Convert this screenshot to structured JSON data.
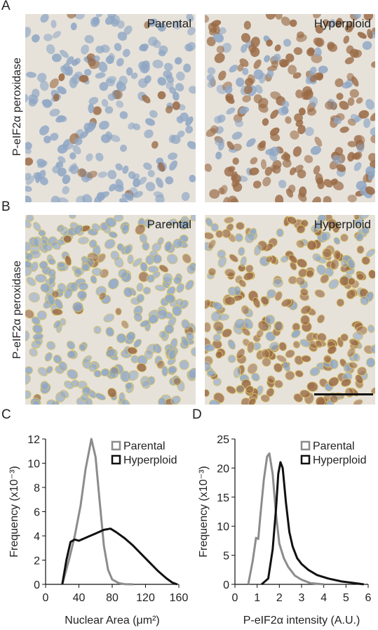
{
  "panels": {
    "A": {
      "letter": "A",
      "ylabel": "P-eIF2α peroxidase",
      "left_label": "Parental",
      "right_label": "Hyperploid"
    },
    "B": {
      "letter": "B",
      "ylabel": "P-eIF2α peroxidase",
      "left_label": "Parental",
      "right_label": "Hyperploid"
    },
    "C": {
      "letter": "C"
    },
    "D": {
      "letter": "D"
    }
  },
  "colors": {
    "parental": "#8c8c8c",
    "hyperploid": "#111111",
    "bg_tissue": "#e6e2da",
    "nucleus_blue": "#8fa6c4",
    "nucleus_brown": "#9a6a45",
    "outline_yellow": "#d8c46a"
  },
  "chart_data": [
    {
      "type": "line",
      "panel": "C",
      "xlabel": "Nuclear Area (μm²)",
      "ylabel": "Frequency (x10⁻³)",
      "xlim": [
        0,
        160
      ],
      "ylim": [
        0,
        12
      ],
      "xticks": [
        0,
        40,
        80,
        120,
        160
      ],
      "yticks": [
        0,
        2,
        4,
        6,
        8,
        10,
        12
      ],
      "legend_position": "top-right",
      "series": [
        {
          "name": "Parental",
          "x": [
            20,
            28,
            35,
            42,
            48,
            55,
            60,
            65,
            70,
            75,
            80,
            88,
            95,
            105
          ],
          "y": [
            0,
            2.0,
            4.0,
            6.5,
            9.5,
            12.0,
            10.5,
            6.8,
            3.2,
            1.2,
            0.4,
            0.1,
            0.02,
            0
          ]
        },
        {
          "name": "Hyperploid",
          "x": [
            20,
            25,
            30,
            35,
            40,
            50,
            60,
            70,
            78,
            85,
            95,
            105,
            115,
            125,
            135,
            145,
            152,
            158
          ],
          "y": [
            0,
            2.0,
            3.5,
            3.7,
            3.6,
            3.9,
            4.2,
            4.5,
            4.6,
            4.3,
            3.8,
            3.2,
            2.5,
            1.8,
            1.1,
            0.5,
            0.15,
            0
          ]
        }
      ]
    },
    {
      "type": "line",
      "panel": "D",
      "xlabel": "P-eIF2α intensity (A.U.)",
      "ylabel": "Frequency (x10⁻³)",
      "xlim": [
        0,
        6
      ],
      "ylim": [
        0,
        25
      ],
      "xticks": [
        0,
        1,
        2,
        3,
        4,
        5,
        6
      ],
      "yticks": [
        0,
        5,
        10,
        15,
        20,
        25
      ],
      "legend_position": "top-right",
      "series": [
        {
          "name": "Parental",
          "x": [
            0.6,
            0.8,
            0.95,
            1.05,
            1.15,
            1.3,
            1.45,
            1.55,
            1.7,
            1.85,
            2.0,
            2.2,
            2.4,
            2.7,
            3.0,
            3.4,
            4.0
          ],
          "y": [
            0,
            4.0,
            8.0,
            7.8,
            12.0,
            18.0,
            22.0,
            22.5,
            19.0,
            12.0,
            7.0,
            4.5,
            3.0,
            1.5,
            0.8,
            0.2,
            0
          ]
        },
        {
          "name": "Hyperploid",
          "x": [
            1.2,
            1.5,
            1.7,
            1.85,
            1.95,
            2.05,
            2.15,
            2.3,
            2.45,
            2.6,
            2.8,
            3.0,
            3.3,
            3.7,
            4.2,
            4.8,
            5.4,
            5.8
          ],
          "y": [
            0,
            1.0,
            6.0,
            13.0,
            19.0,
            21.0,
            20.0,
            14.0,
            9.0,
            6.5,
            4.5,
            3.5,
            2.5,
            1.6,
            1.0,
            0.5,
            0.2,
            0
          ]
        }
      ]
    }
  ]
}
